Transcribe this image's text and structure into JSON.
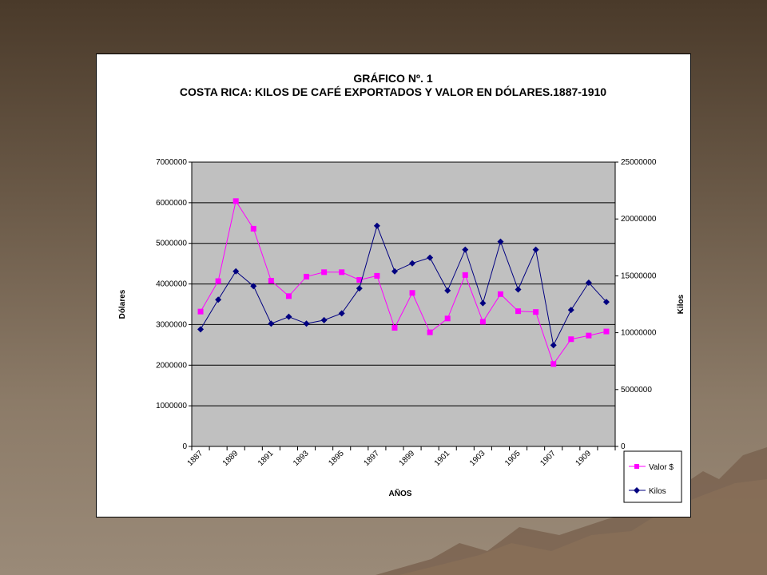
{
  "chart_data": {
    "type": "line",
    "title": "GRÁFICO Nº. 1",
    "subtitle": "COSTA RICA: KILOS DE CAFÉ EXPORTADOS Y VALOR EN DÓLARES.1887-1910",
    "xlabel": "AÑOS",
    "ylabel": "Dólares",
    "y2label": "Kilos",
    "x": [
      1887,
      1888,
      1889,
      1890,
      1891,
      1892,
      1893,
      1894,
      1895,
      1896,
      1897,
      1898,
      1899,
      1900,
      1901,
      1902,
      1903,
      1904,
      1905,
      1906,
      1907,
      1908,
      1909,
      1910
    ],
    "xtick_labels": [
      "1887",
      "1889",
      "1891",
      "1893",
      "1895",
      "1897",
      "1899",
      "1901",
      "1903",
      "1905",
      "1907",
      "1909"
    ],
    "ylim": [
      0,
      7000000
    ],
    "yticks": [
      "0",
      "1000000",
      "2000000",
      "3000000",
      "4000000",
      "5000000",
      "6000000",
      "7000000"
    ],
    "y2lim": [
      0,
      25000000
    ],
    "y2ticks": [
      "0",
      "5000000",
      "10000000",
      "15000000",
      "20000000",
      "25000000"
    ],
    "grid": true,
    "legend_position": "bottom-right",
    "series": [
      {
        "name": "Valor $",
        "axis": "left",
        "color": "#ff00ff",
        "marker": "square",
        "values": [
          3320000,
          4070000,
          6040000,
          5360000,
          4080000,
          3700000,
          4180000,
          4290000,
          4290000,
          4100000,
          4200000,
          2920000,
          3780000,
          2810000,
          3150000,
          4220000,
          3070000,
          3750000,
          3330000,
          3310000,
          2030000,
          2640000,
          2730000,
          2830000
        ]
      },
      {
        "name": "Kilos",
        "axis": "right",
        "color": "#000080",
        "marker": "diamond",
        "values": [
          10300000,
          12900000,
          15400000,
          14100000,
          10800000,
          11400000,
          10800000,
          11100000,
          11700000,
          13900000,
          19400000,
          15400000,
          16100000,
          16600000,
          13700000,
          17300000,
          12600000,
          18000000,
          13800000,
          17300000,
          8900000,
          12000000,
          14400000,
          12700000
        ]
      }
    ]
  }
}
